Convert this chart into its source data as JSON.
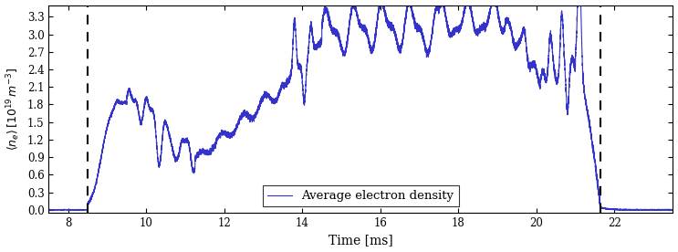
{
  "title": "",
  "xlabel": "Time [ms]",
  "ylabel": "$\\langle n_e \\rangle$ $[10^{19}\\,m^{-3}]$",
  "xlim": [
    7.5,
    23.5
  ],
  "ylim": [
    -0.05,
    3.5
  ],
  "yticks": [
    0.0,
    0.3,
    0.6,
    0.9,
    1.2,
    1.5,
    1.8,
    2.1,
    2.4,
    2.7,
    3.0,
    3.3
  ],
  "xticks": [
    8,
    10,
    12,
    14,
    16,
    18,
    20,
    22
  ],
  "line_color": "#3333cc",
  "vline1_x": 8.5,
  "vline2_x": 21.65,
  "vline_color": "black",
  "vline_style": "--",
  "legend_label": "Average electron density",
  "background_color": "#ffffff",
  "figsize": [
    7.43,
    2.76
  ],
  "dpi": 100
}
